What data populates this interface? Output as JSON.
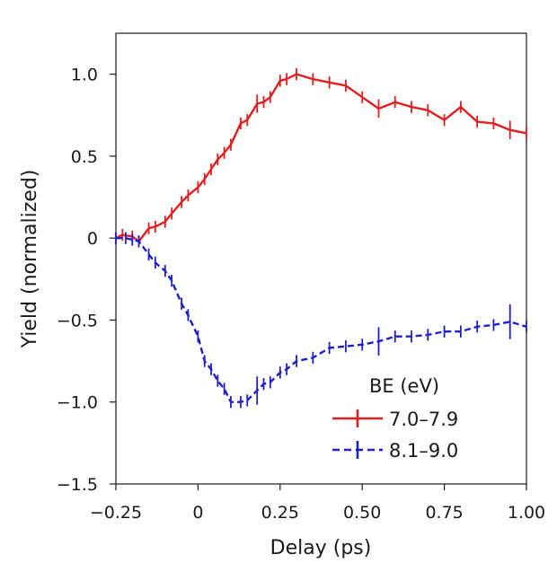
{
  "chart_data": {
    "type": "line",
    "title": "",
    "xlabel": "Delay (ps)",
    "ylabel": "Yield (normalized)",
    "xlim": [
      -0.25,
      1.0
    ],
    "ylim": [
      -1.5,
      1.25
    ],
    "xticks": [
      -0.25,
      0,
      0.25,
      0.5,
      0.75,
      1.0
    ],
    "xtick_labels": [
      "−0.25",
      "0",
      "0.25",
      "0.50",
      "0.75",
      "1.00"
    ],
    "yticks": [
      1.0,
      0.5,
      0,
      -0.5,
      -1.0,
      -1.5
    ],
    "ytick_labels": [
      "1.0",
      "0.5",
      "0",
      "−0.5",
      "−1.0",
      "−1.5"
    ],
    "legend": {
      "title": "BE (eV)",
      "position": "bottom-right"
    },
    "series": [
      {
        "name": "7.0–7.9",
        "color": "#e02020",
        "dashed": false,
        "x": [
          -0.25,
          -0.23,
          -0.2,
          -0.18,
          -0.15,
          -0.13,
          -0.1,
          -0.08,
          -0.05,
          -0.03,
          0.0,
          0.02,
          0.04,
          0.06,
          0.08,
          0.1,
          0.13,
          0.15,
          0.18,
          0.2,
          0.22,
          0.25,
          0.27,
          0.3,
          0.35,
          0.4,
          0.45,
          0.5,
          0.55,
          0.6,
          0.65,
          0.7,
          0.75,
          0.8,
          0.85,
          0.9,
          0.95,
          1.0
        ],
        "y": [
          0.0,
          0.02,
          0.01,
          -0.02,
          0.06,
          0.07,
          0.1,
          0.15,
          0.22,
          0.26,
          0.31,
          0.36,
          0.42,
          0.48,
          0.52,
          0.57,
          0.7,
          0.72,
          0.82,
          0.83,
          0.86,
          0.96,
          0.97,
          1.0,
          0.97,
          0.95,
          0.93,
          0.86,
          0.79,
          0.83,
          0.8,
          0.78,
          0.72,
          0.8,
          0.71,
          0.7,
          0.66,
          0.64
        ],
        "yerr": [
          0.02,
          0.02,
          0.02,
          0.02,
          0.02,
          0.02,
          0.02,
          0.02,
          0.02,
          0.02,
          0.02,
          0.02,
          0.02,
          0.02,
          0.02,
          0.02,
          0.02,
          0.02,
          0.04,
          0.02,
          0.02,
          0.02,
          0.02,
          0.02,
          0.02,
          0.02,
          0.02,
          0.02,
          0.04,
          0.02,
          0.02,
          0.02,
          0.02,
          0.02,
          0.02,
          0.02,
          0.04,
          0.02
        ]
      },
      {
        "name": "8.1–9.0",
        "color": "#2020c8",
        "dashed": true,
        "x": [
          -0.25,
          -0.22,
          -0.2,
          -0.18,
          -0.15,
          -0.13,
          -0.1,
          -0.08,
          -0.05,
          -0.03,
          0.0,
          0.02,
          0.04,
          0.06,
          0.08,
          0.1,
          0.13,
          0.15,
          0.18,
          0.2,
          0.22,
          0.25,
          0.27,
          0.3,
          0.35,
          0.4,
          0.45,
          0.5,
          0.55,
          0.6,
          0.65,
          0.7,
          0.75,
          0.8,
          0.85,
          0.9,
          0.95,
          1.0
        ],
        "y": [
          0.0,
          0.0,
          -0.01,
          -0.02,
          -0.1,
          -0.15,
          -0.2,
          -0.26,
          -0.4,
          -0.47,
          -0.6,
          -0.75,
          -0.8,
          -0.87,
          -0.92,
          -1.0,
          -1.0,
          -0.99,
          -0.93,
          -0.89,
          -0.88,
          -0.82,
          -0.8,
          -0.75,
          -0.73,
          -0.67,
          -0.66,
          -0.65,
          -0.63,
          -0.6,
          -0.6,
          -0.59,
          -0.57,
          -0.57,
          -0.54,
          -0.53,
          -0.51,
          -0.54
        ],
        "yerr": [
          0.02,
          0.02,
          0.02,
          0.02,
          0.02,
          0.02,
          0.02,
          0.02,
          0.02,
          0.02,
          0.02,
          0.02,
          0.02,
          0.02,
          0.02,
          0.02,
          0.02,
          0.02,
          0.07,
          0.02,
          0.02,
          0.02,
          0.02,
          0.02,
          0.02,
          0.02,
          0.02,
          0.02,
          0.07,
          0.02,
          0.02,
          0.02,
          0.02,
          0.02,
          0.02,
          0.02,
          0.09,
          0.02
        ]
      }
    ]
  }
}
